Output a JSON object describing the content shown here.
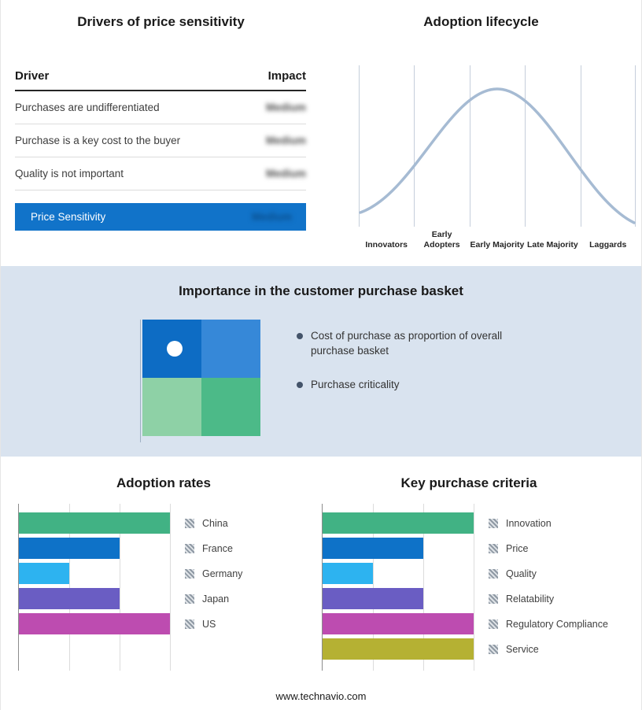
{
  "drivers_panel": {
    "title": "Drivers of price sensitivity",
    "columns": {
      "driver": "Driver",
      "impact": "Impact"
    },
    "rows": [
      {
        "driver": "Purchases are undifferentiated",
        "impact": "Medium"
      },
      {
        "driver": "Purchase is a key cost to the buyer",
        "impact": "Medium"
      },
      {
        "driver": "Quality is not important",
        "impact": "Medium"
      }
    ],
    "summary": {
      "label": "Price Sensitivity",
      "impact": "Medium"
    },
    "accent_color": "#1173c9"
  },
  "lifecycle_panel": {
    "title": "Adoption lifecycle",
    "stages": [
      "Innovators",
      "Early Adopters",
      "Early Majority",
      "Late Majority",
      "Laggards"
    ],
    "curve_color": "#a6bbd3"
  },
  "basket_panel": {
    "title": "Importance in the customer purchase basket",
    "bullets": [
      "Cost of purchase as proportion of overall purchase basket",
      "Purchase criticality"
    ],
    "quadrant_colors": {
      "top_left": "#0d6cc4",
      "top_right": "#3688d8",
      "bottom_left": "#8ed1a6",
      "bottom_right": "#4cba88"
    },
    "band_color": "#d9e3ef"
  },
  "chart_data": [
    {
      "type": "line",
      "shape": "bell-curve",
      "title": "Adoption lifecycle",
      "categories": [
        "Innovators",
        "Early Adopters",
        "Early Majority",
        "Late Majority",
        "Laggards"
      ],
      "grid": true,
      "legend_position": "none",
      "line_color": "#a6bbd3"
    },
    {
      "type": "bar",
      "orientation": "horizontal",
      "title": "Adoption rates",
      "categories": [
        "China",
        "France",
        "Germany",
        "Japan",
        "US"
      ],
      "values": [
        3,
        2,
        1,
        2,
        3
      ],
      "xlim": [
        0,
        3
      ],
      "colors": [
        "#41b284",
        "#0e72c8",
        "#2db3f0",
        "#6a5dc3",
        "#bd4cb0"
      ],
      "grid": true,
      "legend_position": "right"
    },
    {
      "type": "bar",
      "orientation": "horizontal",
      "title": "Key purchase criteria",
      "categories": [
        "Innovation",
        "Price",
        "Quality",
        "Relatability",
        "Regulatory Compliance",
        "Service"
      ],
      "values": [
        3,
        2,
        1,
        2,
        3,
        3
      ],
      "xlim": [
        0,
        3
      ],
      "colors": [
        "#41b284",
        "#0e72c8",
        "#2db3f0",
        "#6a5dc3",
        "#bd4cb0",
        "#b5b133"
      ],
      "grid": true,
      "legend_position": "right"
    }
  ],
  "footer": {
    "text": "www.technavio.com"
  }
}
